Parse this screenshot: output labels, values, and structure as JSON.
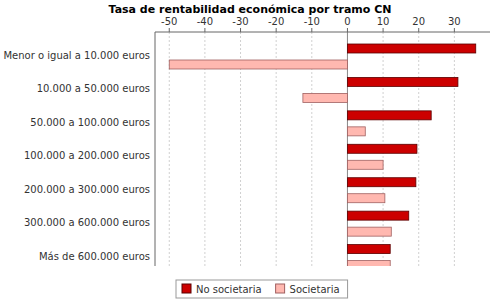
{
  "chart_data": {
    "type": "bar",
    "orientation": "horizontal",
    "title": "Tasa de rentabilidad económica por tramo CN",
    "categories": [
      "Menor o igual a 10.000 euros",
      "10.000 a 50.000 euros",
      "50.000 a 100.000 euros",
      "100.000 a 200.000 euros",
      "200.000 a 300.000 euros",
      "300.000 a 600.000 euros",
      "Más de 600.000 euros"
    ],
    "series": [
      {
        "name": "No societaria",
        "color": "#cc0000",
        "values": [
          36,
          31,
          23.5,
          19.5,
          19.2,
          17.2,
          12
        ]
      },
      {
        "name": "Societaria",
        "color": "#ffb8b0",
        "values": [
          -50,
          -12.5,
          5,
          10,
          10.5,
          12.3,
          12
        ]
      }
    ],
    "xlim": [
      -54,
      40
    ],
    "xticks": [
      -50,
      -40,
      -30,
      -20,
      -10,
      0,
      10,
      20,
      30
    ],
    "grid": true,
    "legend": "bottom"
  }
}
